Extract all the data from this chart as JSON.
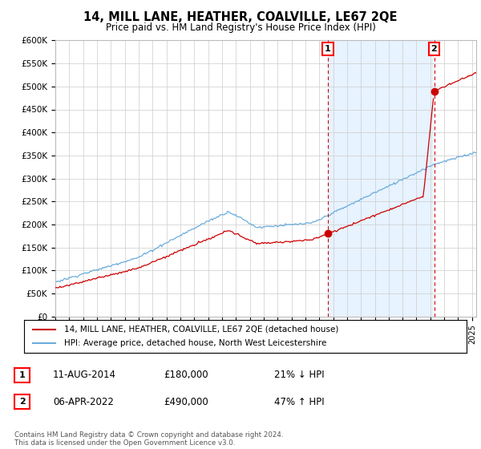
{
  "title": "14, MILL LANE, HEATHER, COALVILLE, LE67 2QE",
  "subtitle": "Price paid vs. HM Land Registry's House Price Index (HPI)",
  "ylabel_ticks": [
    "£0",
    "£50K",
    "£100K",
    "£150K",
    "£200K",
    "£250K",
    "£300K",
    "£350K",
    "£400K",
    "£450K",
    "£500K",
    "£550K",
    "£600K"
  ],
  "ytick_values": [
    0,
    50000,
    100000,
    150000,
    200000,
    250000,
    300000,
    350000,
    400000,
    450000,
    500000,
    550000,
    600000
  ],
  "xmin": 1995.0,
  "xmax": 2025.3,
  "ymin": 0,
  "ymax": 600000,
  "hpi_color": "#6aacdc",
  "price_color": "#cc0000",
  "shade_color": "#ddeeff",
  "annotation1_date": 2014.62,
  "annotation1_price": 180000,
  "annotation1_label": "1",
  "annotation2_date": 2022.27,
  "annotation2_price": 490000,
  "annotation2_label": "2",
  "legend_label1": "14, MILL LANE, HEATHER, COALVILLE, LE67 2QE (detached house)",
  "legend_label2": "HPI: Average price, detached house, North West Leicestershire",
  "note1_label": "1",
  "note1_date": "11-AUG-2014",
  "note1_price": "£180,000",
  "note1_rel": "21% ↓ HPI",
  "note2_label": "2",
  "note2_date": "06-APR-2022",
  "note2_price": "£490,000",
  "note2_rel": "47% ↑ HPI",
  "footer": "Contains HM Land Registry data © Crown copyright and database right 2024.\nThis data is licensed under the Open Government Licence v3.0.",
  "vline_color": "#cc0000",
  "vline_style": "--"
}
